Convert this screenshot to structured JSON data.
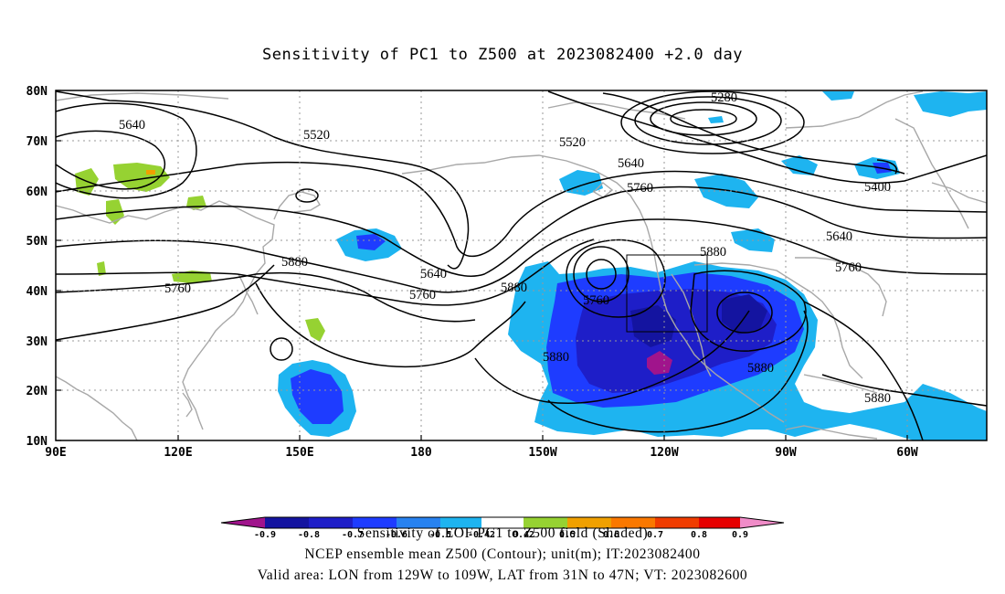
{
  "title": "Sensitivity of PC1 to Z500 at 2023082400 +2.0 day",
  "map": {
    "lat_labels": [
      "80N",
      "70N",
      "60N",
      "50N",
      "40N",
      "30N",
      "20N",
      "10N"
    ],
    "lon_labels": [
      "90E",
      "120E",
      "150E",
      "180",
      "150W",
      "120W",
      "90W",
      "60W"
    ],
    "contour_labels": [
      "5280",
      "5520",
      "5640",
      "5640",
      "5400",
      "5520",
      "5640",
      "5760",
      "5640",
      "5760",
      "5880",
      "5760",
      "5880",
      "5640",
      "5760",
      "5880",
      "5760",
      "5880",
      "5880",
      "5880",
      "5880"
    ],
    "colors": {
      "land": "#a8a8a8",
      "contour": "#000000",
      "grid": "#999999"
    }
  },
  "colorbar": {
    "ticks": [
      "-0.9",
      "-0.8",
      "-0.7",
      "-0.6",
      "-0.5",
      "-0.42",
      "0.42",
      "0.5",
      "0.6",
      "0.7",
      "0.8",
      "0.9"
    ],
    "colors": [
      "#a0148c",
      "#1414a0",
      "#1e1ec8",
      "#1e3cff",
      "#2882f0",
      "#1eb4f0",
      "#ffffff",
      "#96d232",
      "#f0a000",
      "#fa7800",
      "#f03c00",
      "#e60000",
      "#f08cc8"
    ]
  },
  "captions": {
    "line1": "Sensitivity of EOF PC1 to Z500 field (Shaded)",
    "line2": "NCEP ensemble mean Z500 (Contour); unit(m); IT:2023082400",
    "line3": "Valid area: LON from 129W to 109W, LAT from 31N to 47N; VT: 2023082600"
  }
}
